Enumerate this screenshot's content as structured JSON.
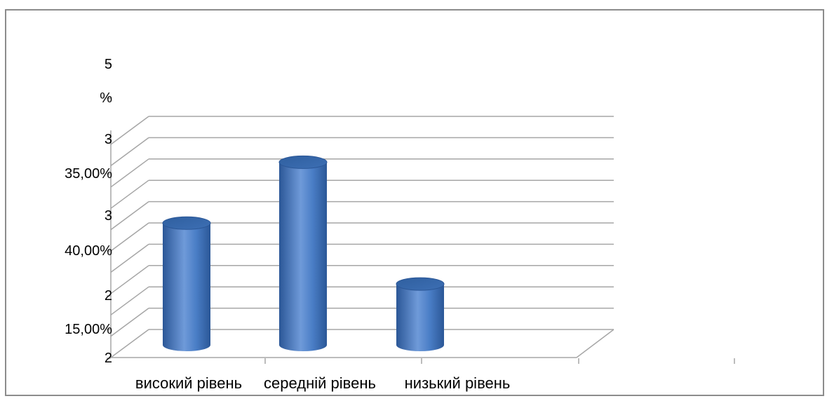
{
  "chart_data": {
    "type": "bar",
    "style": "3d-cylinder",
    "categories": [
      "високий рівень",
      "середній рівень",
      "низький рівень"
    ],
    "values": [
      40.0,
      60.0,
      20.0
    ],
    "value_format": "percent",
    "ylim": [
      0,
      70
    ],
    "y_tick_labels": [
      "2",
      "15,00%",
      "2",
      "40,00%",
      "3",
      "35,00%",
      "3",
      "%",
      "5"
    ],
    "grid": true,
    "legend": "none",
    "title": "",
    "xlabel": "",
    "ylabel": "",
    "colors": {
      "bar": "#4a7ec6",
      "bar_dark": "#2b5797",
      "bar_light": "#7aa4de",
      "grid": "#a6a6a6",
      "frame": "#8c8c8c"
    }
  }
}
